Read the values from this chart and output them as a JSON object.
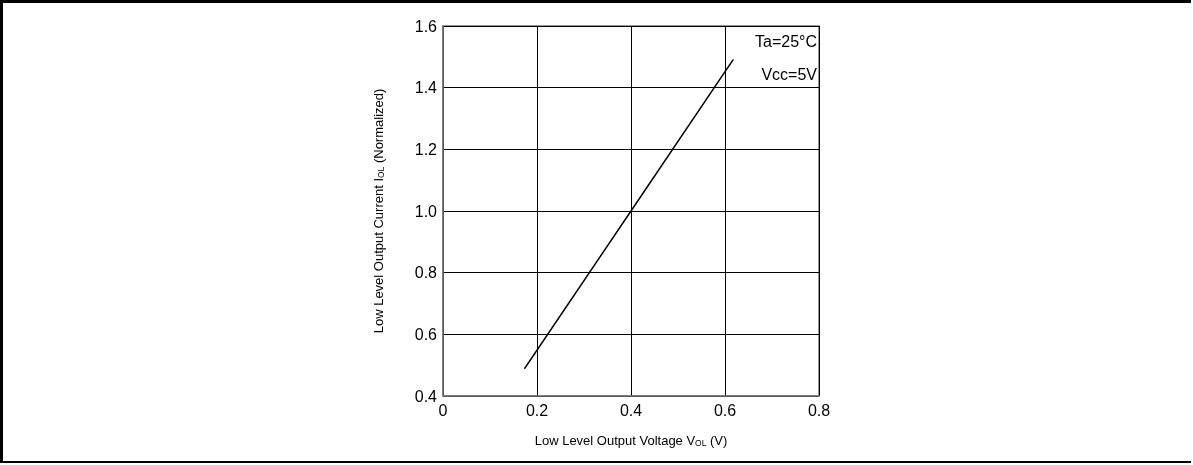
{
  "chart_data": {
    "type": "line",
    "xlabel": "Low Level Output Voltage V$_{OL}$ (V)",
    "ylabel": "Low Level Output Current I$_{OL}$ (Normalized)",
    "x": [
      0.174,
      0.4,
      0.617
    ],
    "series": [
      {
        "color": "#000000",
        "values": [
          0.49,
          1.0,
          1.49
        ]
      }
    ],
    "xlim": [
      0,
      0.8
    ],
    "xticks": [
      0,
      0.2,
      0.4,
      0.6,
      0.8
    ],
    "ylim": [
      0.4,
      1.6
    ],
    "yticks": [
      0.4,
      0.6,
      0.8,
      {
        "value": 1,
        "label": "1.0"
      },
      1.2,
      1.4,
      1.6
    ],
    "grid": true,
    "marker": "none",
    "line_style": "solid",
    "annotations": [
      "Ta=25°C",
      "Vcc=5V"
    ]
  }
}
